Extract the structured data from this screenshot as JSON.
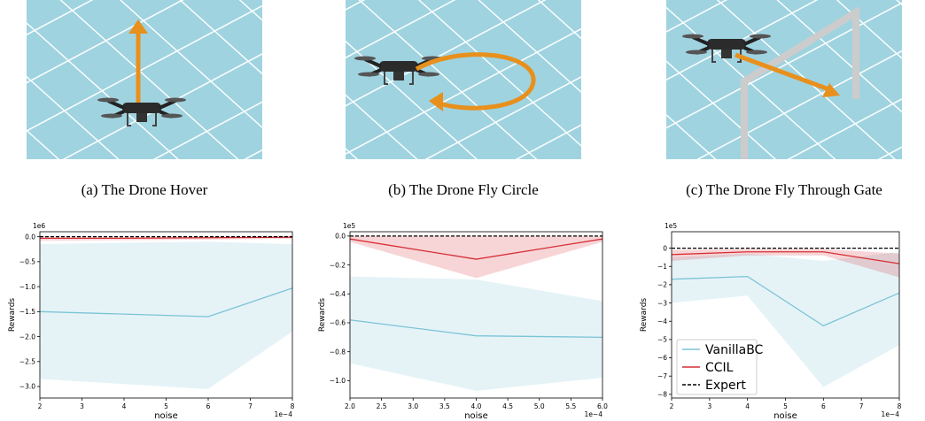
{
  "captions": [
    "(a) The Drone Hover",
    "(b) The Drone Fly Circle",
    "(c) The Drone Fly Through Gate"
  ],
  "chart_data": [
    {
      "type": "line",
      "x": [
        2,
        4,
        6,
        8
      ],
      "xlim": [
        2,
        8
      ],
      "xticks": [
        2,
        3,
        4,
        5,
        6,
        7,
        8
      ],
      "x_offset_label": "1e−4",
      "ylim": [
        -3.23,
        0.1
      ],
      "yticks": [
        {
          "value": 0,
          "label": "0.0"
        },
        {
          "value": -0.5,
          "label": "−0.5"
        },
        {
          "value": -1,
          "label": "−1.0"
        },
        {
          "value": -1.5,
          "label": "−1.5"
        },
        {
          "value": -2,
          "label": "−2.0"
        },
        {
          "value": -2.5,
          "label": "−2.5"
        },
        {
          "value": -3,
          "label": "−3.0"
        }
      ],
      "y_offset_label": "1e6",
      "xlabel": "noise",
      "ylabel": "Rewards",
      "series": [
        {
          "color": "#7cc3d6",
          "values": [
            -1.5,
            -1.55,
            -1.6,
            -1.03
          ],
          "upper": [
            -0.15,
            -0.12,
            -0.1,
            -0.15
          ],
          "lower": [
            -2.85,
            -2.95,
            -3.05,
            -1.9
          ]
        },
        {
          "color": "#d62f35",
          "values": [
            -0.03,
            -0.03,
            -0.02,
            -0.01
          ],
          "upper": [
            -0.01,
            -0.01,
            -0.01,
            0
          ],
          "lower": [
            -0.08,
            -0.07,
            -0.06,
            -0.04
          ]
        },
        {
          "color": "#000000",
          "dash": true,
          "values": [
            0,
            0,
            0,
            0
          ]
        }
      ]
    },
    {
      "type": "line",
      "x": [
        2,
        4,
        6
      ],
      "xlim": [
        2,
        6
      ],
      "xticks": [
        {
          "value": 2,
          "label": "2.0"
        },
        {
          "value": 2.5,
          "label": "2.5"
        },
        {
          "value": 3,
          "label": "3.0"
        },
        {
          "value": 3.5,
          "label": "3.5"
        },
        {
          "value": 4,
          "label": "4.0"
        },
        {
          "value": 4.5,
          "label": "4.5"
        },
        {
          "value": 5,
          "label": "5.0"
        },
        {
          "value": 5.5,
          "label": "5.5"
        },
        {
          "value": 6,
          "label": "6.0"
        }
      ],
      "x_offset_label": "1e−4",
      "ylim": [
        -1.12,
        0.03
      ],
      "yticks": [
        {
          "value": 0,
          "label": "0.0"
        },
        {
          "value": -0.2,
          "label": "−0.2"
        },
        {
          "value": -0.4,
          "label": "−0.4"
        },
        {
          "value": -0.6,
          "label": "−0.6"
        },
        {
          "value": -0.8,
          "label": "−0.8"
        },
        {
          "value": -1,
          "label": "−1.0"
        }
      ],
      "y_offset_label": "1e5",
      "xlabel": "noise",
      "ylabel": "Rewards",
      "series": [
        {
          "color": "#7cc3d6",
          "values": [
            -0.58,
            -0.69,
            -0.7
          ],
          "upper": [
            -0.28,
            -0.3,
            -0.45
          ],
          "lower": [
            -0.88,
            -1.07,
            -0.98
          ]
        },
        {
          "color": "#d62f35",
          "values": [
            -0.02,
            -0.16,
            -0.02
          ],
          "upper": [
            0,
            0,
            0
          ],
          "lower": [
            -0.04,
            -0.29,
            -0.04
          ]
        },
        {
          "color": "#000000",
          "dash": true,
          "values": [
            0,
            0,
            0
          ]
        }
      ]
    },
    {
      "type": "line",
      "x": [
        2,
        4,
        6,
        8
      ],
      "xlim": [
        2,
        8
      ],
      "xticks": [
        2,
        3,
        4,
        5,
        6,
        7,
        8
      ],
      "x_offset_label": "1e−4",
      "ylim": [
        -8.2,
        0.9
      ],
      "yticks": [
        0,
        {
          "value": -1,
          "label": "−1"
        },
        {
          "value": -2,
          "label": "−2"
        },
        {
          "value": -3,
          "label": "−3"
        },
        {
          "value": -4,
          "label": "−4"
        },
        {
          "value": -5,
          "label": "−5"
        },
        {
          "value": -6,
          "label": "−6"
        },
        {
          "value": -7,
          "label": "−7"
        },
        {
          "value": -8,
          "label": "−8"
        }
      ],
      "y_offset_label": "1e5",
      "xlabel": "noise",
      "ylabel": "Rewards",
      "legend": "lower left",
      "series": [
        {
          "name": "VanillaBC",
          "color": "#7cc3d6",
          "values": [
            -1.7,
            -1.55,
            -4.25,
            -2.45
          ],
          "upper": [
            -0.5,
            -0.3,
            -0.7,
            -0.2
          ],
          "lower": [
            -3.0,
            -2.6,
            -7.6,
            -5.3
          ]
        },
        {
          "name": "CCIL",
          "color": "#d62f35",
          "values": [
            -0.35,
            -0.2,
            -0.2,
            -0.85
          ],
          "upper": [
            -0.1,
            -0.05,
            -0.05,
            -0.3
          ],
          "lower": [
            -0.7,
            -0.4,
            -0.4,
            -1.6
          ]
        },
        {
          "name": "Expert",
          "color": "#000000",
          "dash": true,
          "values": [
            0,
            0,
            0,
            0
          ]
        }
      ]
    }
  ]
}
